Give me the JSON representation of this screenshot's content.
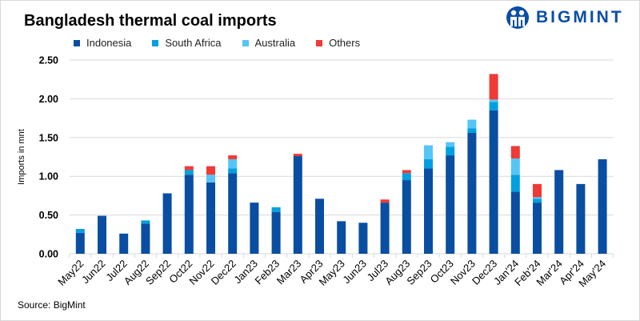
{
  "title": "Bangladesh thermal coal imports",
  "brand": "BIGMINT",
  "source": "Source: BigMint",
  "chart_data": {
    "type": "bar",
    "stacked": true,
    "title": "Bangladesh thermal coal imports",
    "xlabel": "",
    "ylabel": "Imports in mnt",
    "ylim": [
      0,
      2.5
    ],
    "yticks": [
      "0.00",
      "0.50",
      "1.00",
      "1.50",
      "2.00",
      "2.50"
    ],
    "grid": true,
    "legend_position": "top",
    "categories": [
      "May22",
      "Jun22",
      "Jul22",
      "Aug22",
      "Sep22",
      "Oct22",
      "Nov22",
      "Dec22",
      "Jan23",
      "Feb23",
      "Mar23",
      "Apr23",
      "May23",
      "Jun23",
      "Jul23",
      "Aug23",
      "Sep23",
      "Oct23",
      "Nov23",
      "Dec23",
      "Jan'24",
      "Feb'24",
      "Mar'24",
      "Apr'24",
      "May'24"
    ],
    "series": [
      {
        "name": "Indonesia",
        "color": "#0a4ea2",
        "values": [
          0.27,
          0.49,
          0.26,
          0.39,
          0.78,
          1.02,
          0.92,
          1.04,
          0.66,
          0.54,
          1.26,
          0.71,
          0.42,
          0.4,
          0.66,
          0.95,
          1.1,
          1.27,
          1.56,
          1.85,
          0.8,
          0.66,
          1.08,
          0.9,
          1.22
        ]
      },
      {
        "name": "South Africa",
        "color": "#00a0e0",
        "values": [
          0.05,
          0,
          0,
          0.04,
          0,
          0.06,
          0,
          0.06,
          0,
          0.06,
          0,
          0,
          0,
          0,
          0,
          0.09,
          0.12,
          0.11,
          0.06,
          0.11,
          0.22,
          0.05,
          0,
          0,
          0
        ]
      },
      {
        "name": "Australia",
        "color": "#55c5f5",
        "values": [
          0,
          0,
          0,
          0,
          0,
          0,
          0.1,
          0.12,
          0,
          0,
          0,
          0,
          0,
          0,
          0,
          0,
          0.18,
          0.06,
          0.11,
          0.03,
          0.21,
          0.02,
          0,
          0,
          0
        ]
      },
      {
        "name": "Others",
        "color": "#ef3a36",
        "values": [
          0,
          0,
          0,
          0,
          0,
          0.05,
          0.11,
          0.05,
          0,
          0,
          0.03,
          0,
          0,
          0,
          0.04,
          0.04,
          0,
          0,
          0,
          0.33,
          0.16,
          0.17,
          0,
          0,
          0
        ]
      }
    ]
  }
}
